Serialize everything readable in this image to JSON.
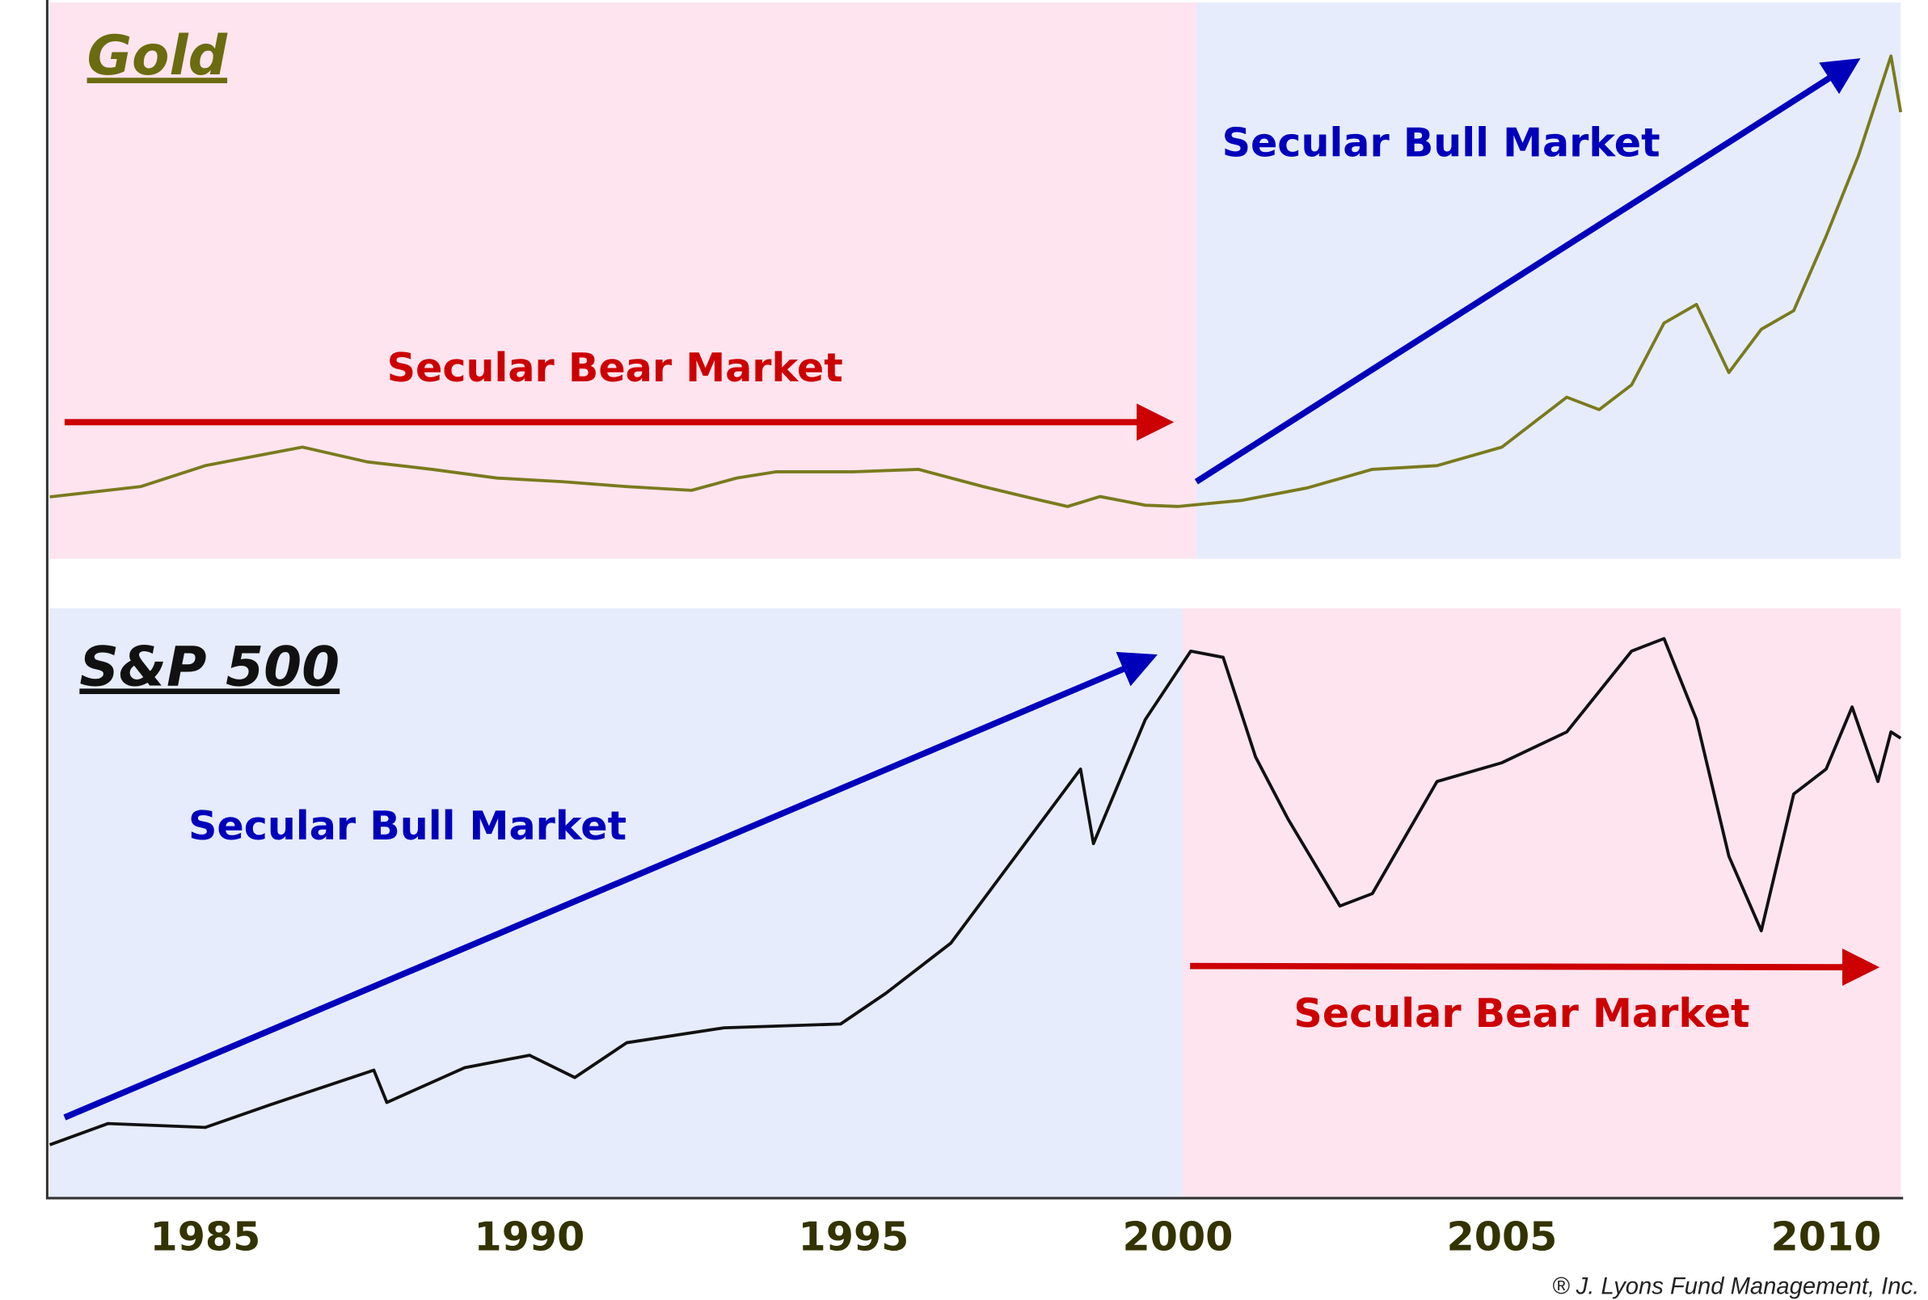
{
  "chart_data": [
    {
      "type": "line",
      "title": "Gold",
      "annotations": [
        "Secular Bear Market",
        "Secular Bull Market"
      ],
      "x": [
        1982.6,
        1984,
        1985,
        1985.5,
        1986.5,
        1987.5,
        1988.5,
        1989.5,
        1990.5,
        1991.5,
        1992.5,
        1993.2,
        1993.8,
        1995,
        1996,
        1997,
        1997.8,
        1998.3,
        1998.8,
        1999.5,
        2000,
        2001,
        2002,
        2003,
        2004,
        2005,
        2006,
        2006.5,
        2007,
        2007.5,
        2008,
        2008.5,
        2009,
        2009.5,
        2010,
        2010.5,
        2011,
        2011.15
      ],
      "series": [
        {
          "name": "Gold",
          "color": "#7a7a1e",
          "values": [
            350,
            375,
            426,
            441,
            471,
            435,
            417,
            396,
            387,
            375,
            366,
            396,
            411,
            411,
            417,
            375,
            345,
            327,
            351,
            330,
            327,
            342,
            372,
            417,
            426,
            471,
            592,
            562,
            622,
            772,
            817,
            652,
            757,
            802,
            983,
            1179,
            1420,
            1284
          ]
        }
      ],
      "xlim": [
        1982.6,
        2011.15
      ],
      "ylim": [
        200,
        1550
      ]
    },
    {
      "type": "line",
      "title": "S&P 500",
      "annotations": [
        "Secular Bull Market",
        "Secular Bear Market"
      ],
      "x": [
        1982.6,
        1983.5,
        1985,
        1986,
        1987.6,
        1987.8,
        1989,
        1990,
        1990.7,
        1991.5,
        1993,
        1994.8,
        1995.5,
        1996.5,
        1997.5,
        1998.5,
        1998.7,
        1999.5,
        2000.2,
        2000.7,
        2001.2,
        2001.7,
        2002.5,
        2003,
        2004,
        2005,
        2006,
        2007,
        2007.5,
        2008,
        2008.5,
        2009,
        2009.5,
        2010,
        2010.4,
        2010.8,
        2011,
        2011.15
      ],
      "series": [
        {
          "name": "S&P 500",
          "color": "#111111",
          "values": [
            154,
            215,
            204,
            269,
            369,
            276,
            376,
            412,
            348,
            448,
            491,
            502,
            591,
            735,
            986,
            1237,
            1022,
            1380,
            1577,
            1559,
            1272,
            1093,
            842,
            878,
            1201,
            1255,
            1344,
            1577,
            1613,
            1380,
            986,
            771,
            1165,
            1237,
            1416,
            1201,
            1344,
            1326
          ]
        }
      ],
      "xlim": [
        1982.6,
        2011.15
      ],
      "ylim": [
        0,
        1700
      ],
      "xticks": [
        1985,
        1990,
        1995,
        2000,
        2005,
        2010
      ]
    }
  ],
  "footer": "® J. Lyons Fund Management, Inc."
}
